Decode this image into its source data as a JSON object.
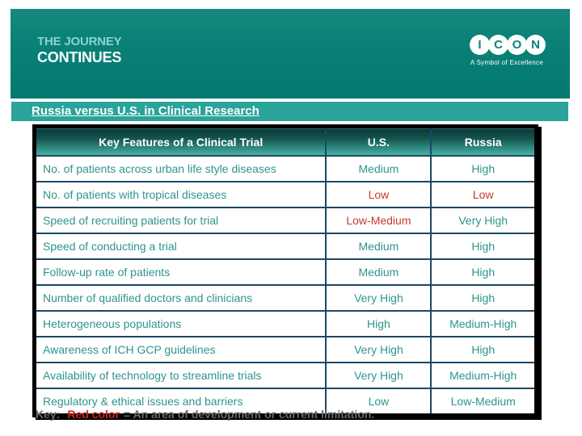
{
  "banner": {
    "journey_line1": "THE JOURNEY",
    "journey_line2": "CONTINUES",
    "icon_letters": [
      "I",
      "C",
      "O",
      "N"
    ],
    "icon_tagline": "A Symbol of Excellence"
  },
  "title": "Russia versus U.S. in Clinical Research",
  "table": {
    "headers": [
      "Key Features of a Clinical Trial",
      "U.S.",
      "Russia"
    ],
    "rows": [
      {
        "feature": "No. of patients across urban life style diseases",
        "us": "Medium",
        "us_red": false,
        "russia": "High",
        "russia_red": false
      },
      {
        "feature": "No. of patients with tropical diseases",
        "us": "Low",
        "us_red": true,
        "russia": "Low",
        "russia_red": true
      },
      {
        "feature": "Speed of recruiting patients for trial",
        "us": "Low-Medium",
        "us_red": true,
        "russia": "Very High",
        "russia_red": false
      },
      {
        "feature": "Speed of conducting a trial",
        "us": "Medium",
        "us_red": false,
        "russia": "High",
        "russia_red": false
      },
      {
        "feature": "Follow-up rate of patients",
        "us": "Medium",
        "us_red": false,
        "russia": "High",
        "russia_red": false
      },
      {
        "feature": "Number of qualified doctors and clinicians",
        "us": "Very High",
        "us_red": false,
        "russia": "High",
        "russia_red": false
      },
      {
        "feature": "Heterogeneous populations",
        "us": "High",
        "us_red": false,
        "russia": "Medium-High",
        "russia_red": false
      },
      {
        "feature": "Awareness of ICH GCP guidelines",
        "us": "Very High",
        "us_red": false,
        "russia": "High",
        "russia_red": false
      },
      {
        "feature": "Availability of technology to streamline trials",
        "us": "Very High",
        "us_red": false,
        "russia": "Medium-High",
        "russia_red": false
      },
      {
        "feature": "Regulatory & ethical issues and barriers",
        "us": "Low",
        "us_red": false,
        "russia": "Low-Medium",
        "russia_red": false
      }
    ]
  },
  "key": {
    "prefix": "Key:",
    "highlight": "Red color",
    "suffix": "= An area of development or current limitation."
  },
  "colors": {
    "banner_teal": "#0B8277",
    "title_bar_teal": "#2AA39A",
    "header_gradient_top": "#0A3837",
    "header_gradient_bottom": "#4CB1A6",
    "grid_border": "#1B4766",
    "teal_text": "#2E948D",
    "red_text": "#C33A31",
    "key_red": "#CE2420",
    "key_gray": "#696969"
  }
}
